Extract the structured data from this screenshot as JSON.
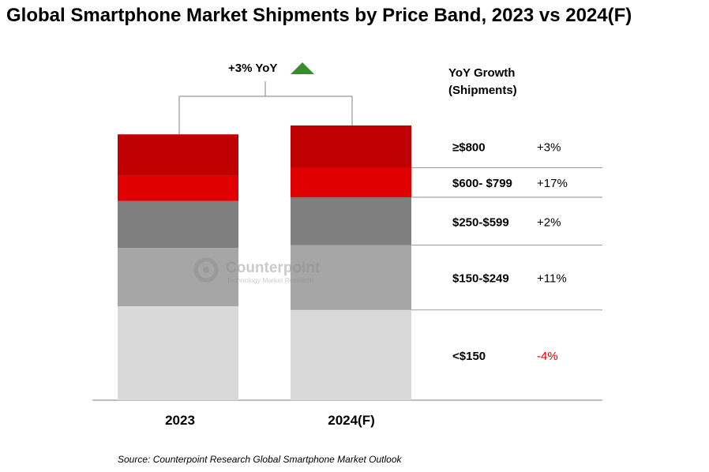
{
  "chart_data": {
    "type": "bar",
    "stacked": true,
    "title": "Global Smartphone Market Shipments by Price Band, 2023 vs 2024(F)",
    "categories": [
      "2023",
      "2024(F)"
    ],
    "series": [
      {
        "name": "<$150",
        "values": [
          100,
          96
        ],
        "growth": "-4%",
        "color": "#d9d9d9",
        "growth_color": "#e00000"
      },
      {
        "name": "$150-$249",
        "values": [
          62,
          69
        ],
        "growth": "+11%",
        "color": "#a6a6a6",
        "growth_color": "#000000"
      },
      {
        "name": "$250-$599",
        "values": [
          50,
          51
        ],
        "growth": "+2%",
        "color": "#7f7f7f",
        "growth_color": "#000000"
      },
      {
        "name": "$600- $799",
        "values": [
          27,
          31.5
        ],
        "growth": "+17%",
        "color": "#e00000",
        "growth_color": "#000000"
      },
      {
        "name": "≥$800",
        "values": [
          44,
          45
        ],
        "growth": "+3%",
        "color": "#c00000",
        "growth_color": "#000000"
      }
    ],
    "total_growth_label": "+3% YoY",
    "growth_header": [
      "YoY Growth",
      "(Shipments)"
    ],
    "ylim": [
      0,
      300
    ],
    "grid": false,
    "legend": "right"
  },
  "watermark": {
    "name": "Counterpoint",
    "tagline": "Technology Market Research"
  },
  "source": "Source: Counterpoint Research Global Smartphone Market Outlook",
  "colors": {
    "arrow": "#3a8a2e",
    "bracket": "#7f7f7f",
    "divider": "#7f7f7f"
  }
}
